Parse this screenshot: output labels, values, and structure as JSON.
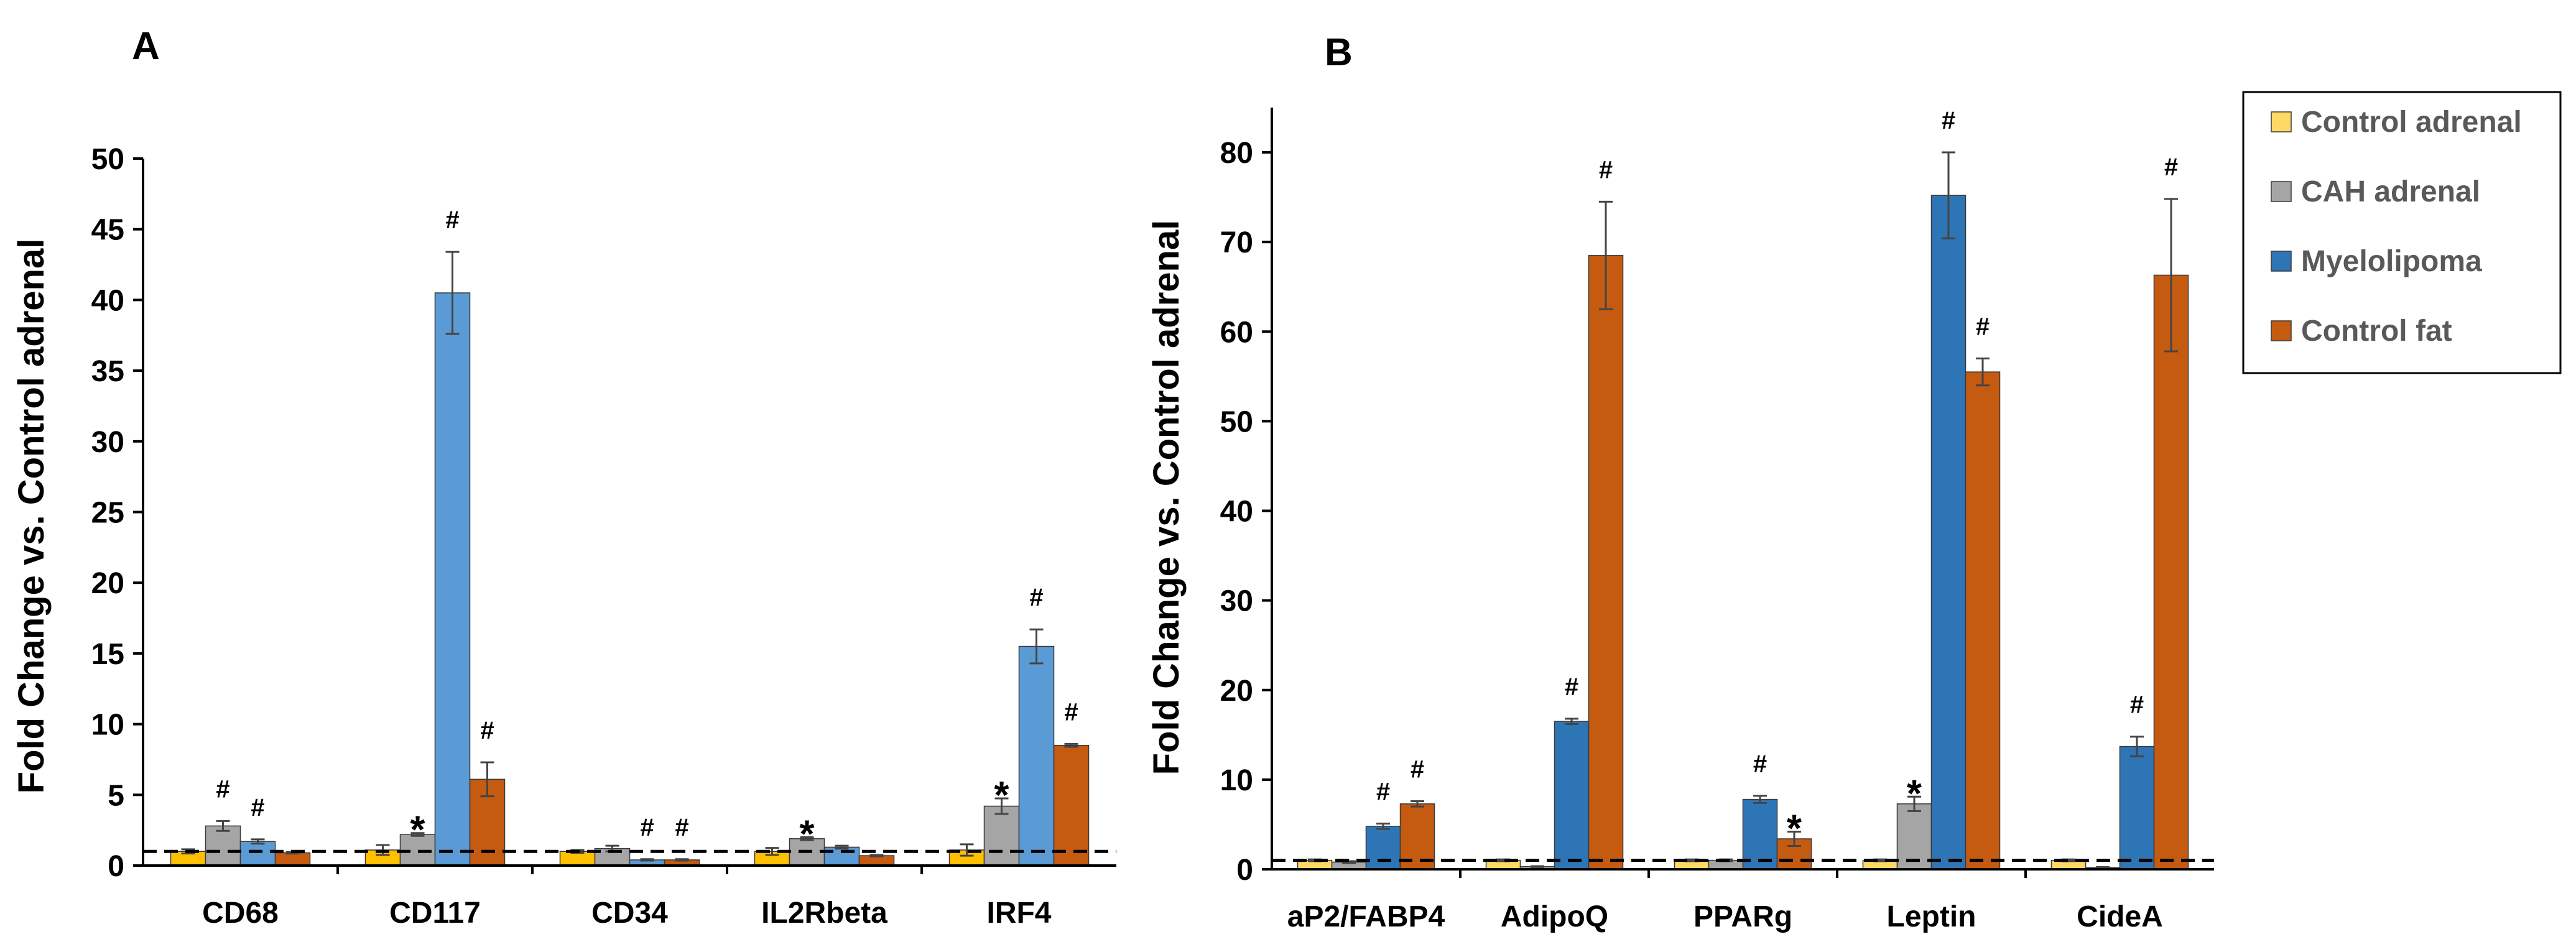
{
  "chart_data": [
    {
      "panel_label": "A",
      "type": "bar",
      "ylabel": "Fold Change vs. Control adrenal",
      "ylim": [
        0,
        50
      ],
      "yticks": [
        0,
        5,
        10,
        15,
        20,
        25,
        30,
        35,
        40,
        45,
        50
      ],
      "reference_line": 1,
      "categories": [
        "CD68",
        "CD117",
        "CD34",
        "IL2Rbeta",
        "IRF4"
      ],
      "series": [
        {
          "name": "Control adrenal",
          "color": "#FFC000",
          "values": [
            1.0,
            1.1,
            1.0,
            1.0,
            1.1
          ],
          "errors": [
            0.15,
            0.35,
            0.1,
            0.25,
            0.4
          ]
        },
        {
          "name": "CAH adrenal",
          "color": "#A5A5A5",
          "values": [
            2.8,
            2.2,
            1.2,
            1.9,
            4.2
          ],
          "errors": [
            0.35,
            0.1,
            0.2,
            0.1,
            0.55
          ]
        },
        {
          "name": "Myelolipoma",
          "color": "#5B9BD5",
          "values": [
            1.7,
            40.5,
            0.4,
            1.3,
            15.5
          ],
          "errors": [
            0.15,
            2.9,
            0.05,
            0.1,
            1.2
          ]
        },
        {
          "name": "Control fat",
          "color": "#C55A11",
          "values": [
            0.9,
            6.1,
            0.4,
            0.7,
            8.5
          ],
          "errors": [
            0.05,
            1.2,
            0.05,
            0.05,
            0.1
          ]
        }
      ],
      "annotations": [
        {
          "category": "CD68",
          "series": "CAH adrenal",
          "mark": "#"
        },
        {
          "category": "CD68",
          "series": "Myelolipoma",
          "mark": "#"
        },
        {
          "category": "CD117",
          "series": "CAH adrenal",
          "mark": "*"
        },
        {
          "category": "CD117",
          "series": "Myelolipoma",
          "mark": "#"
        },
        {
          "category": "CD117",
          "series": "Control fat",
          "mark": "#"
        },
        {
          "category": "CD34",
          "series": "Myelolipoma",
          "mark": "#"
        },
        {
          "category": "CD34",
          "series": "Control fat",
          "mark": "#"
        },
        {
          "category": "IL2Rbeta",
          "series": "CAH adrenal",
          "mark": "*"
        },
        {
          "category": "IRF4",
          "series": "CAH adrenal",
          "mark": "*"
        },
        {
          "category": "IRF4",
          "series": "Myelolipoma",
          "mark": "#"
        },
        {
          "category": "IRF4",
          "series": "Control fat",
          "mark": "#"
        }
      ]
    },
    {
      "panel_label": "B",
      "type": "bar",
      "ylabel": "Fold Change vs. Control adrenal",
      "ylim": [
        0,
        85
      ],
      "yticks": [
        0,
        10,
        20,
        30,
        40,
        50,
        60,
        70,
        80
      ],
      "reference_line": 1,
      "categories": [
        "aP2/FABP4",
        "AdipoQ",
        "PPARg",
        "Leptin",
        "CideA"
      ],
      "series": [
        {
          "name": "Control adrenal",
          "color": "#FFD966",
          "values": [
            1.0,
            1.0,
            1.0,
            1.0,
            1.0
          ],
          "errors": [
            0.1,
            0.1,
            0.1,
            0.1,
            0.1
          ]
        },
        {
          "name": "CAH adrenal",
          "color": "#A5A5A5",
          "values": [
            0.8,
            0.3,
            1.0,
            7.3,
            0.2
          ],
          "errors": [
            0.1,
            0.05,
            0.1,
            0.8,
            0.05
          ]
        },
        {
          "name": "Myelolipoma",
          "color": "#2E75B6",
          "values": [
            4.8,
            16.5,
            7.8,
            75.2,
            13.7
          ],
          "errors": [
            0.3,
            0.3,
            0.4,
            4.8,
            1.1
          ]
        },
        {
          "name": "Control fat",
          "color": "#C55A11",
          "values": [
            7.3,
            68.5,
            3.4,
            55.5,
            66.3
          ],
          "errors": [
            0.3,
            6.0,
            0.8,
            1.5,
            8.5
          ]
        }
      ],
      "annotations": [
        {
          "category": "aP2/FABP4",
          "series": "Myelolipoma",
          "mark": "#"
        },
        {
          "category": "aP2/FABP4",
          "series": "Control fat",
          "mark": "#"
        },
        {
          "category": "AdipoQ",
          "series": "Myelolipoma",
          "mark": "#"
        },
        {
          "category": "AdipoQ",
          "series": "Control fat",
          "mark": "#"
        },
        {
          "category": "PPARg",
          "series": "Myelolipoma",
          "mark": "#"
        },
        {
          "category": "PPARg",
          "series": "Control fat",
          "mark": "*"
        },
        {
          "category": "Leptin",
          "series": "CAH adrenal",
          "mark": "*"
        },
        {
          "category": "Leptin",
          "series": "Myelolipoma",
          "mark": "#"
        },
        {
          "category": "Leptin",
          "series": "Control fat",
          "mark": "#"
        },
        {
          "category": "CideA",
          "series": "Myelolipoma",
          "mark": "#"
        },
        {
          "category": "CideA",
          "series": "Control fat",
          "mark": "#"
        }
      ],
      "legend": {
        "placement": "top-right",
        "entries": [
          "Control adrenal",
          "CAH adrenal",
          "Myelolipoma",
          "Control fat"
        ]
      }
    }
  ]
}
